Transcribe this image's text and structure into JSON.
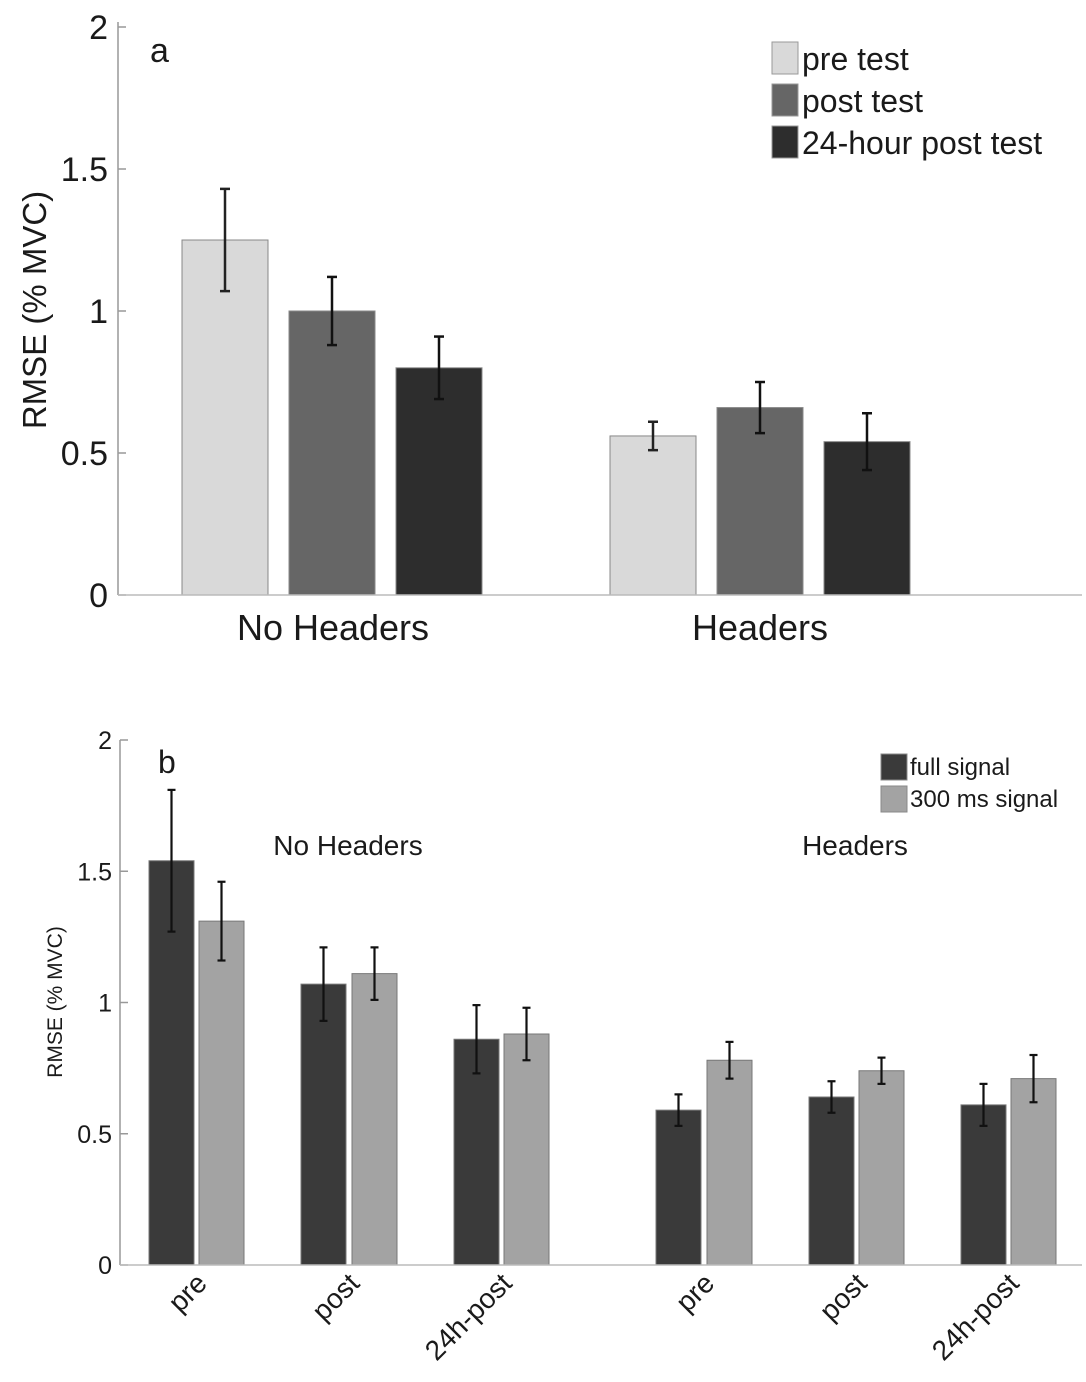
{
  "chart_data": [
    {
      "type": "bar",
      "panel_label": "a",
      "ylabel": "RMSE (% MVC)",
      "ylim": [
        0,
        2
      ],
      "yticks": [
        "0",
        "0.5",
        "1",
        "1.5",
        "2"
      ],
      "categories": [
        "No Headers",
        "Headers"
      ],
      "legend_position": "top-right",
      "series": [
        {
          "name": "pre test",
          "color": "#d9d9d9",
          "values": [
            1.25,
            0.56
          ],
          "errors": [
            0.18,
            0.05
          ]
        },
        {
          "name": "post test",
          "color": "#666666",
          "values": [
            1.0,
            0.66
          ],
          "errors": [
            0.12,
            0.09
          ]
        },
        {
          "name": "24-hour post test",
          "color": "#2d2d2d",
          "values": [
            0.8,
            0.54
          ],
          "errors": [
            0.11,
            0.1
          ]
        }
      ]
    },
    {
      "type": "bar",
      "panel_label": "b",
      "ylabel": "RMSE (% MVC)",
      "ylim": [
        0,
        2
      ],
      "yticks": [
        "0",
        "0.5",
        "1",
        "1.5",
        "2"
      ],
      "groups": [
        "No Headers",
        "Headers"
      ],
      "categories": [
        "pre",
        "post",
        "24h-post",
        "pre",
        "post",
        "24h-post"
      ],
      "legend_position": "top-right",
      "series": [
        {
          "name": "full signal",
          "color": "#3a3a3a",
          "values": [
            1.54,
            1.07,
            0.86,
            0.59,
            0.64,
            0.61
          ],
          "errors": [
            0.27,
            0.14,
            0.13,
            0.06,
            0.06,
            0.08
          ]
        },
        {
          "name": "300 ms signal",
          "color": "#a3a3a3",
          "values": [
            1.31,
            1.11,
            0.88,
            0.78,
            0.74,
            0.71
          ],
          "errors": [
            0.15,
            0.1,
            0.1,
            0.07,
            0.05,
            0.09
          ]
        }
      ]
    }
  ]
}
